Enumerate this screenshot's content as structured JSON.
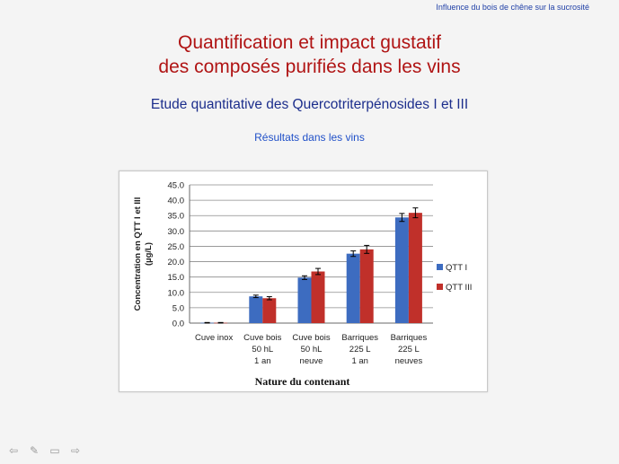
{
  "header": {
    "note": "Influence du bois de chêne sur la sucrosité"
  },
  "slide": {
    "title_line1": "Quantification et impact gustatif",
    "title_line2": "des composés purifiés dans les vins",
    "subtitle": "Etude quantitative des Quercotriterpénosides I et III",
    "results_label": "Résultats dans les vins"
  },
  "chart_data": {
    "type": "bar",
    "categories": [
      [
        "Cuve inox"
      ],
      [
        "Cuve bois",
        "50 hL",
        "1 an"
      ],
      [
        "Cuve bois",
        "50 hL",
        "neuve"
      ],
      [
        "Barriques",
        "225 L",
        "1 an"
      ],
      [
        "Barriques",
        "225 L",
        "neuves"
      ]
    ],
    "series": [
      {
        "name": "QTT I",
        "color": "#3d6cc0",
        "values": [
          0.1,
          8.7,
          14.8,
          22.6,
          34.4
        ],
        "errors": [
          0.1,
          0.4,
          0.6,
          0.9,
          1.3
        ]
      },
      {
        "name": "QTT III",
        "color": "#c0302a",
        "values": [
          0.1,
          8.1,
          16.8,
          24.0,
          35.9
        ],
        "errors": [
          0.1,
          0.5,
          1.0,
          1.3,
          1.6
        ]
      }
    ],
    "ylabel_line1": "Concentration en QTT I et III",
    "ylabel_line2": "(µg/L)",
    "xlabel": "Nature du contenant",
    "ylim": [
      0,
      45
    ],
    "yticks": [
      "0.0",
      "5.0",
      "10.0",
      "15.0",
      "20.0",
      "25.0",
      "30.0",
      "35.0",
      "40.0",
      "45.0"
    ],
    "grid": true,
    "legend_position": "right"
  },
  "nav": {
    "prev_icon": "arrow-left-icon",
    "pen_icon": "pen-icon",
    "menu_icon": "slide-menu-icon",
    "next_icon": "arrow-right-icon"
  }
}
